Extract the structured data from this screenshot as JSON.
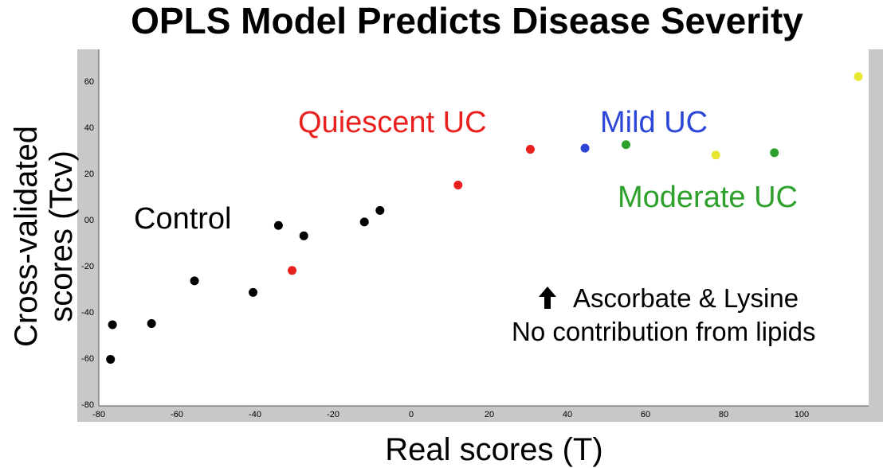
{
  "chart_data": {
    "type": "scatter",
    "title": "OPLS Model Predicts Disease Severity",
    "xlabel": "Real scores (T)",
    "ylabel_line1": "Cross-validated",
    "ylabel_line2": "scores (Tcv)",
    "xlim": [
      -80,
      117
    ],
    "ylim": [
      -80,
      75
    ],
    "x_ticks": [
      -80,
      -60,
      -40,
      -20,
      0,
      20,
      40,
      60,
      80,
      100
    ],
    "y_ticks": [
      -80,
      -60,
      -40,
      -20,
      0,
      20,
      40,
      60
    ],
    "y_tick_labels": [
      "-80",
      "-60",
      "-40",
      "-20",
      "00",
      "20",
      "40",
      "60"
    ],
    "grid": false,
    "series": [
      {
        "name": "Control",
        "color": "#000000",
        "points": [
          {
            "x": -77,
            "y": -60.5
          },
          {
            "x": -76.5,
            "y": -45.5
          },
          {
            "x": -66.5,
            "y": -45
          },
          {
            "x": -55.5,
            "y": -26.5
          },
          {
            "x": -40.5,
            "y": -31.5
          },
          {
            "x": -34,
            "y": -2.5
          },
          {
            "x": -27.5,
            "y": -7
          },
          {
            "x": -12,
            "y": -1
          },
          {
            "x": -8,
            "y": 4
          }
        ]
      },
      {
        "name": "Quiescent UC",
        "color": "#e8211e",
        "points": [
          {
            "x": -30.5,
            "y": -22
          },
          {
            "x": 12,
            "y": 15
          },
          {
            "x": 30.5,
            "y": 30.5
          }
        ]
      },
      {
        "name": "Mild UC",
        "color": "#2b45d6",
        "points": [
          {
            "x": 44.5,
            "y": 31
          }
        ]
      },
      {
        "name": "Moderate UC",
        "color": "#2ea02c",
        "points": [
          {
            "x": 55,
            "y": 32.5
          },
          {
            "x": 93,
            "y": 29
          }
        ]
      },
      {
        "name": "",
        "color": "#e8e832",
        "points": [
          {
            "x": 78,
            "y": 28
          },
          {
            "x": 114.5,
            "y": 62
          }
        ]
      }
    ],
    "annotations": {
      "control": "Control",
      "quiescent": "Quiescent UC",
      "mild": "Mild UC",
      "moderate": "Moderate UC",
      "note_line1": "Ascorbate & Lysine",
      "note_line2": "No contribution from lipids",
      "note_icon": "up-arrow-icon"
    },
    "colors": {
      "plot_background": "#ffffff",
      "axis_panel": "#c8c8c8",
      "control": "#000000",
      "quiescent": "#e8211e",
      "mild": "#2b45d6",
      "moderate": "#2ea02c"
    }
  }
}
